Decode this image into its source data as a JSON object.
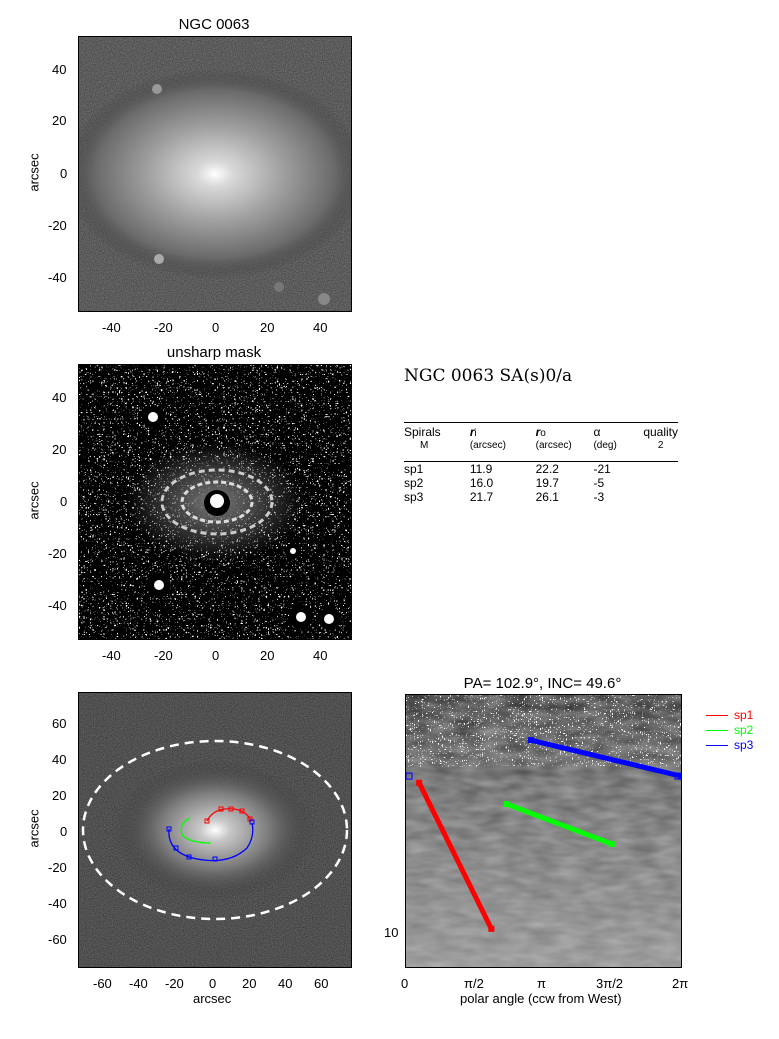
{
  "panel1": {
    "title": "NGC 0063",
    "ylabel": "arcsec",
    "xticks": [
      "-40",
      "-20",
      "0",
      "20",
      "40"
    ],
    "yticks": [
      "40",
      "20",
      "0",
      "-20",
      "-40"
    ]
  },
  "panel2": {
    "title": "unsharp mask",
    "ylabel": "arcsec",
    "xticks": [
      "-40",
      "-20",
      "0",
      "20",
      "40"
    ],
    "yticks": [
      "40",
      "20",
      "0",
      "-20",
      "-40"
    ]
  },
  "panel3": {
    "ylabel": "arcsec",
    "xlabel": "arcsec",
    "xticks": [
      "-60",
      "-40",
      "-20",
      "0",
      "20",
      "40",
      "60"
    ],
    "yticks": [
      "60",
      "40",
      "20",
      "0",
      "-20",
      "-40",
      "-60"
    ]
  },
  "info": {
    "header": "NGC 0063  SA(s)0/a",
    "columns": {
      "spirals": "Spirals",
      "m": "M",
      "ri": "r",
      "ri_sub": "i",
      "ri_unit": "(arcsec)",
      "ro": "r",
      "ro_sub": "o",
      "ro_unit": "(arcsec)",
      "alpha": "α",
      "alpha_unit": "(deg)",
      "quality": "quality",
      "quality_val": "2"
    },
    "rows": [
      {
        "name": "sp1",
        "ri": "11.9",
        "ro": "22.2",
        "alpha": "-21"
      },
      {
        "name": "sp2",
        "ri": "16.0",
        "ro": "19.7",
        "alpha": "-5"
      },
      {
        "name": "sp3",
        "ri": "21.7",
        "ro": "26.1",
        "alpha": "-3"
      }
    ]
  },
  "chart_data": {
    "type": "line",
    "title": "PA= 102.9°, INC=  49.6°",
    "xlabel": "polar angle (ccw from West)",
    "ylabel": "",
    "xticks": [
      "0",
      "π/2",
      "π",
      "3π/2",
      "2π"
    ],
    "ytick_label": "10",
    "xlim": [
      0,
      6.283
    ],
    "yscale": "log",
    "legend_position": "right",
    "series": [
      {
        "name": "sp1",
        "color": "#ff0000",
        "x": [
          0.3,
          1.95
        ],
        "y": [
          21.7,
          10.8
        ]
      },
      {
        "name": "sp2",
        "color": "#00ff00",
        "x": [
          2.3,
          4.7
        ],
        "y": [
          19.6,
          16.2
        ]
      },
      {
        "name": "sp3",
        "color": "#0000ff",
        "x": [
          2.85,
          6.28
        ],
        "y": [
          26.6,
          22.4
        ]
      }
    ],
    "markers": [
      {
        "series": "sp3",
        "x": 0.0,
        "y": 22.4
      },
      {
        "series": "sp3",
        "x": 6.28,
        "y": 22.4
      }
    ]
  },
  "colors": {
    "sp1": "#ff0000",
    "sp2": "#00ff00",
    "sp3": "#0000ff"
  }
}
